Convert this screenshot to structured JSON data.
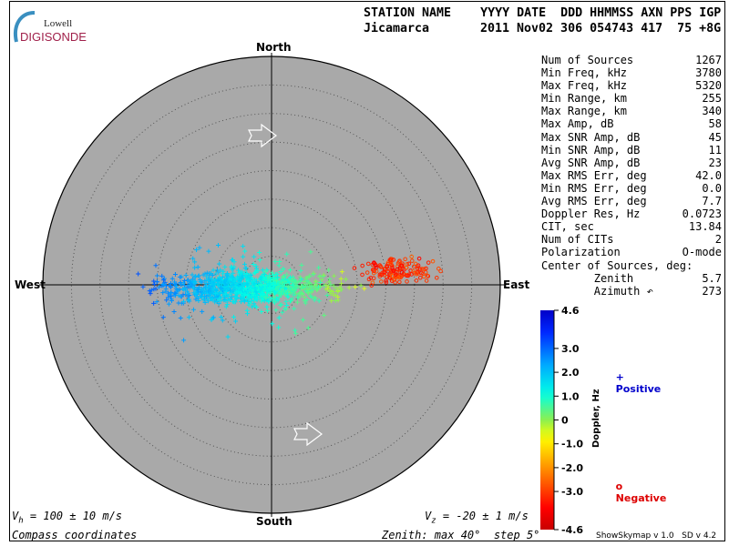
{
  "logo": {
    "line1": "Lowell",
    "line2": "DIGISONDE"
  },
  "header": {
    "labels": "STATION NAME    YYYY DATE  DDD HHMMSS AXN PPS IGP",
    "station": "Jicamarca",
    "values": "2011 Nov02 306 054743 417  75 +8G"
  },
  "stats": [
    {
      "label": "Num of Sources",
      "value": "1267"
    },
    {
      "label": "Min Freq, kHz",
      "value": "3780"
    },
    {
      "label": "Max Freq, kHz",
      "value": "5320"
    },
    {
      "label": "Min Range, km",
      "value": "255"
    },
    {
      "label": "Max Range, km",
      "value": "340"
    },
    {
      "label": "Max Amp, dB",
      "value": "58"
    },
    {
      "label": "Max SNR Amp, dB",
      "value": "45"
    },
    {
      "label": "Min SNR Amp, dB",
      "value": "11"
    },
    {
      "label": "Avg SNR Amp, dB",
      "value": "23"
    },
    {
      "label": "Max RMS Err, deg",
      "value": "42.0"
    },
    {
      "label": "Min RMS Err, deg",
      "value": "0.0"
    },
    {
      "label": "Avg RMS Err, deg",
      "value": "7.7"
    },
    {
      "label": "Doppler Res, Hz",
      "value": "0.0723"
    },
    {
      "label": "CIT, sec",
      "value": "13.84"
    },
    {
      "label": "Num of CITs",
      "value": "2"
    },
    {
      "label": "Polarization",
      "value": "O-mode"
    },
    {
      "label": "Center of Sources, deg:",
      "value": ""
    },
    {
      "label": "        Zenith",
      "value": "5.7"
    },
    {
      "label": "        Azimuth ↶",
      "value": "273"
    }
  ],
  "chart_data": {
    "type": "scatter",
    "projection": "polar skymap",
    "directions": {
      "north": "North",
      "south": "South",
      "east": "East",
      "west": "West"
    },
    "zenith_max_deg": 40,
    "zenith_step_deg": 5,
    "background": "#a9a9a9",
    "center_of_sources": {
      "zenith_deg": 5.7,
      "azimuth_deg": 273
    },
    "colorbar": {
      "label": "Doppler, Hz",
      "range": [
        -4.6,
        4.6
      ],
      "ticks": [
        "4.6",
        "3.0",
        "2.0",
        "1.0",
        "0",
        "-1.0",
        "-2.0",
        "-3.0",
        "-4.6"
      ],
      "tick_values": [
        4.6,
        3.0,
        2.0,
        1.0,
        0,
        -1.0,
        -2.0,
        -3.0,
        -4.6
      ]
    },
    "legend": {
      "positive": {
        "symbol": "+",
        "label": "Positive",
        "color": "#0000cc"
      },
      "negative": {
        "symbol": "o",
        "label": "Negative",
        "color": "#dd0000"
      }
    }
  },
  "footer": {
    "vh": "= 100 ± 10 m/s",
    "vz": "= -20 ± 1 m/s",
    "coords": "Compass coordinates",
    "zenith": "Zenith: max 40°  step 5°",
    "version": "ShowSkymap v 1.0   SD v 4.2"
  }
}
